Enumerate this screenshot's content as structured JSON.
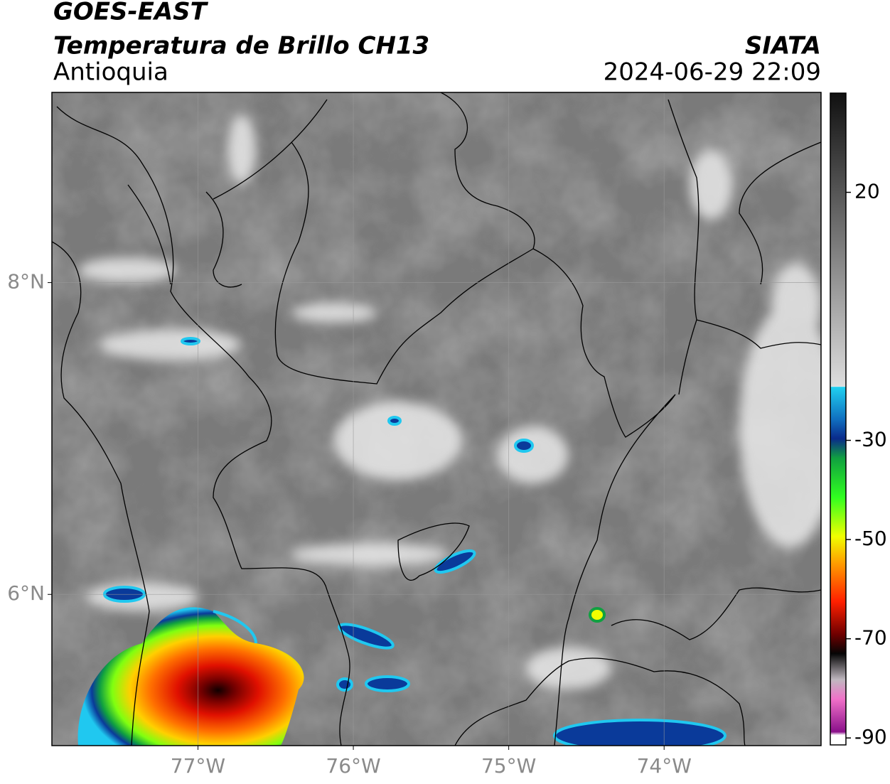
{
  "header": {
    "title": "GOES-EAST",
    "subtitle": "Temperatura de Brillo CH13",
    "region": "Antioquia",
    "source": "SIATA",
    "datetime": "2024-06-29 22:09"
  },
  "map": {
    "lon_range": [
      -77.94,
      -72.99
    ],
    "lat_range": [
      5.03,
      9.22
    ],
    "lon_ticks": [
      {
        "value": -77,
        "label": "77°W"
      },
      {
        "value": -76,
        "label": "76°W"
      },
      {
        "value": -75,
        "label": "75°W"
      },
      {
        "value": -74,
        "label": "74°W"
      }
    ],
    "lat_ticks": [
      {
        "value": 8,
        "label": "8°N"
      },
      {
        "value": 6,
        "label": "6°N"
      }
    ]
  },
  "colorbar": {
    "range": [
      -91.4,
      40
    ],
    "ticks": [
      20,
      -30,
      -50,
      -70,
      -90
    ]
  }
}
